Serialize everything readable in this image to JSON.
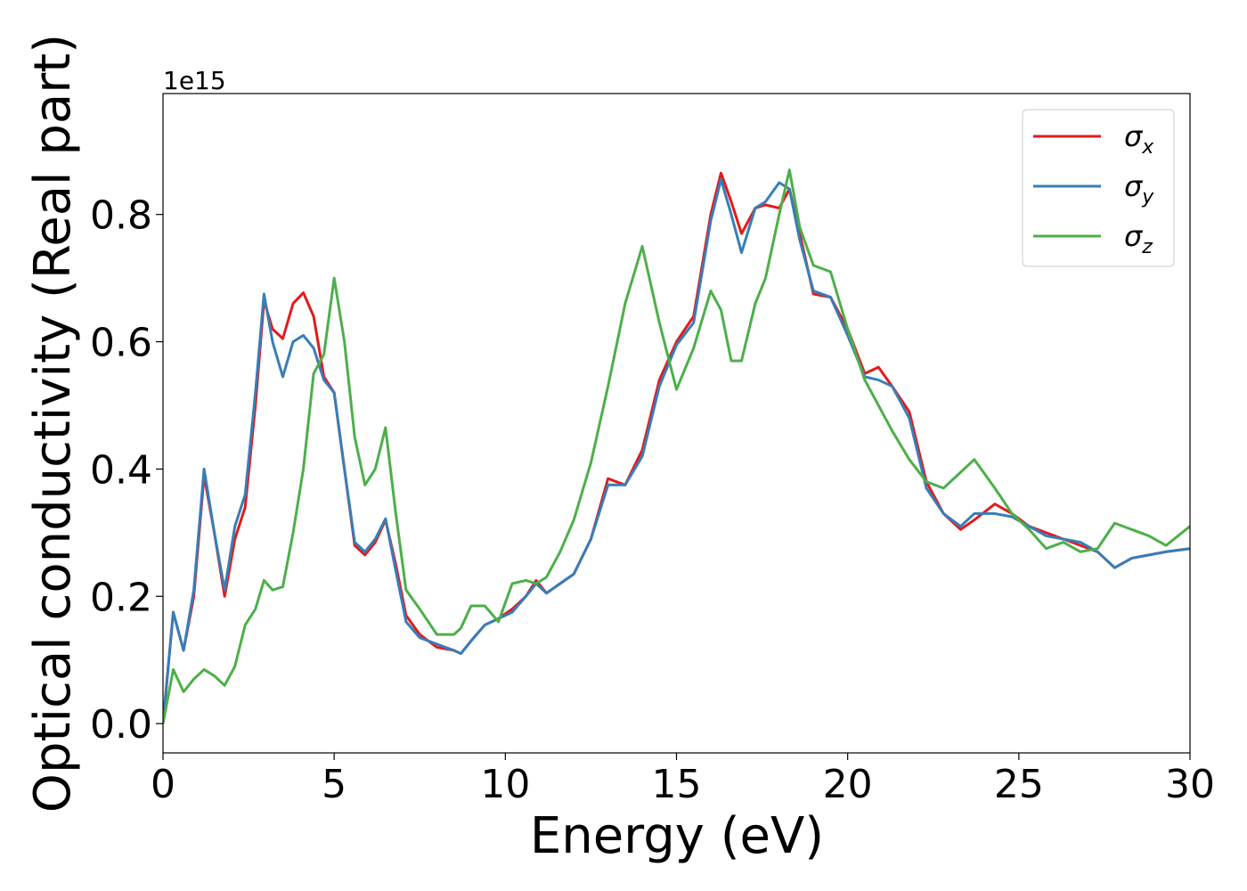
{
  "chart_data": {
    "type": "line",
    "xlabel": "Energy (eV)",
    "ylabel": "Optical conductivity (Real part)",
    "offset_label": "1e15",
    "xlim": [
      0,
      30
    ],
    "ylim": [
      -0.046,
      0.99
    ],
    "xticks": [
      0,
      5,
      10,
      15,
      20,
      25,
      30
    ],
    "yticks": [
      {
        "value": 0,
        "label": "0.0"
      },
      {
        "value": 0.2,
        "label": "0.2"
      },
      {
        "value": 0.4,
        "label": "0.4"
      },
      {
        "value": 0.6,
        "label": "0.6"
      },
      {
        "value": 0.8,
        "label": "0.8"
      }
    ],
    "grid": false,
    "legend": "upper right",
    "x": [
      0,
      0.3,
      0.6,
      0.9,
      1.2,
      1.5,
      1.8,
      2.1,
      2.4,
      2.7,
      2.95,
      3.2,
      3.5,
      3.8,
      4.1,
      4.4,
      4.7,
      5.0,
      5.3,
      5.6,
      5.9,
      6.2,
      6.5,
      6.8,
      7.1,
      7.5,
      8.0,
      8.5,
      8.7,
      9.0,
      9.4,
      9.8,
      10.2,
      10.6,
      10.9,
      11.2,
      11.6,
      12.0,
      12.5,
      13.0,
      13.5,
      14.0,
      14.5,
      15.0,
      15.5,
      16.0,
      16.3,
      16.6,
      16.9,
      17.3,
      17.6,
      18.0,
      18.3,
      18.6,
      19.0,
      19.5,
      20.0,
      20.5,
      20.9,
      21.3,
      21.8,
      22.3,
      22.8,
      23.3,
      23.7,
      24.3,
      24.8,
      25.3,
      25.8,
      26.3,
      26.8,
      27.3,
      27.8,
      28.3,
      28.8,
      29.3,
      30
    ],
    "series": [
      {
        "name": "σx",
        "color": "#e41a1c",
        "values": [
          0,
          0.175,
          0.115,
          0.2,
          0.39,
          0.3,
          0.2,
          0.29,
          0.34,
          0.5,
          0.665,
          0.62,
          0.605,
          0.66,
          0.677,
          0.64,
          0.545,
          0.52,
          0.4,
          0.28,
          0.265,
          0.285,
          0.32,
          0.25,
          0.17,
          0.14,
          0.12,
          0.115,
          0.11,
          0.13,
          0.155,
          0.165,
          0.18,
          0.2,
          0.225,
          0.205,
          0.22,
          0.235,
          0.29,
          0.385,
          0.375,
          0.43,
          0.54,
          0.6,
          0.64,
          0.8,
          0.865,
          0.82,
          0.77,
          0.81,
          0.815,
          0.81,
          0.84,
          0.77,
          0.675,
          0.67,
          0.62,
          0.55,
          0.56,
          0.53,
          0.49,
          0.38,
          0.33,
          0.305,
          0.32,
          0.345,
          0.33,
          0.31,
          0.3,
          0.29,
          0.28,
          0.27,
          0.245,
          0.26,
          0.265,
          0.27,
          0.275
        ]
      },
      {
        "name": "σy",
        "color": "#377eb8",
        "values": [
          0,
          0.175,
          0.115,
          0.21,
          0.4,
          0.3,
          0.21,
          0.31,
          0.36,
          0.52,
          0.675,
          0.6,
          0.545,
          0.6,
          0.61,
          0.59,
          0.54,
          0.52,
          0.4,
          0.285,
          0.27,
          0.29,
          0.322,
          0.24,
          0.16,
          0.135,
          0.125,
          0.115,
          0.11,
          0.13,
          0.155,
          0.165,
          0.175,
          0.2,
          0.22,
          0.205,
          0.22,
          0.235,
          0.29,
          0.375,
          0.375,
          0.42,
          0.53,
          0.595,
          0.63,
          0.79,
          0.855,
          0.8,
          0.74,
          0.81,
          0.82,
          0.85,
          0.84,
          0.76,
          0.68,
          0.67,
          0.61,
          0.545,
          0.54,
          0.53,
          0.48,
          0.37,
          0.33,
          0.31,
          0.33,
          0.33,
          0.325,
          0.31,
          0.295,
          0.29,
          0.285,
          0.27,
          0.245,
          0.26,
          0.265,
          0.27,
          0.275
        ]
      },
      {
        "name": "σz",
        "color": "#4daf4a",
        "values": [
          0,
          0.085,
          0.05,
          0.07,
          0.085,
          0.075,
          0.06,
          0.09,
          0.155,
          0.18,
          0.225,
          0.21,
          0.215,
          0.3,
          0.4,
          0.55,
          0.58,
          0.7,
          0.6,
          0.45,
          0.375,
          0.4,
          0.465,
          0.33,
          0.21,
          0.18,
          0.14,
          0.14,
          0.15,
          0.185,
          0.185,
          0.16,
          0.22,
          0.225,
          0.22,
          0.23,
          0.27,
          0.32,
          0.41,
          0.53,
          0.66,
          0.75,
          0.63,
          0.525,
          0.59,
          0.68,
          0.65,
          0.57,
          0.57,
          0.66,
          0.7,
          0.8,
          0.87,
          0.78,
          0.72,
          0.71,
          0.62,
          0.54,
          0.5,
          0.46,
          0.415,
          0.38,
          0.37,
          0.395,
          0.415,
          0.37,
          0.33,
          0.305,
          0.275,
          0.285,
          0.27,
          0.275,
          0.315,
          0.305,
          0.295,
          0.28,
          0.31
        ]
      }
    ]
  }
}
